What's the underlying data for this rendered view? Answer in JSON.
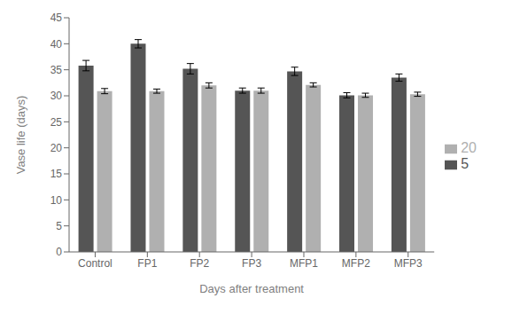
{
  "chart_data": {
    "type": "bar",
    "categories": [
      "Control",
      "FP1",
      "FP2",
      "FP3",
      "MFP1",
      "MFP2",
      "MFP3"
    ],
    "series": [
      {
        "name": "5",
        "color": "#555555",
        "values": [
          35.8,
          40.0,
          35.2,
          31.0,
          34.7,
          30.1,
          33.5
        ],
        "errors": [
          1.0,
          0.8,
          1.0,
          0.5,
          0.8,
          0.5,
          0.7
        ]
      },
      {
        "name": "20",
        "color": "#b0b0b0",
        "values": [
          30.9,
          30.9,
          32.0,
          31.0,
          32.1,
          30.1,
          30.3
        ],
        "errors": [
          0.5,
          0.4,
          0.5,
          0.5,
          0.4,
          0.4,
          0.4
        ]
      }
    ],
    "xlabel": "Days after treatment",
    "ylabel": "Vase life (days)",
    "ylim": [
      0,
      45
    ],
    "yticks": [
      0,
      5,
      10,
      15,
      20,
      25,
      30,
      35,
      40,
      45
    ],
    "grid": false,
    "legend": "right"
  }
}
